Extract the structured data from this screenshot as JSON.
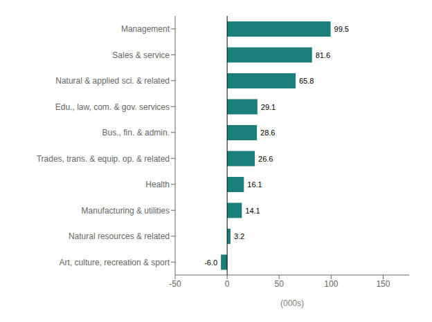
{
  "chart_data": {
    "type": "bar",
    "orientation": "horizontal",
    "categories": [
      "Art, culture, recreation & sport",
      "Natural resources & related",
      "Manufacturing & utilities",
      "Health",
      "Trades, trans. & equip. op. & related",
      "Bus., fin. & admin.",
      "Edu., law, com. & gov. services",
      "Natural & applied sci. & related",
      "Sales & service",
      "Management"
    ],
    "values": [
      -6.0,
      3.2,
      14.1,
      16.1,
      26.6,
      28.6,
      29.1,
      65.8,
      81.6,
      99.5
    ],
    "value_labels": [
      "-6.0",
      "3.2",
      "14.1",
      "16.1",
      "26.6",
      "28.6",
      "29.1",
      "65.8",
      "81.6",
      "99.5"
    ],
    "data_labels": true,
    "color": "#1a7f7a",
    "xlabel": "(000s)",
    "xlim": [
      -50,
      175
    ],
    "xticks": [
      -50,
      0,
      50,
      100,
      150
    ],
    "grid": false
  }
}
